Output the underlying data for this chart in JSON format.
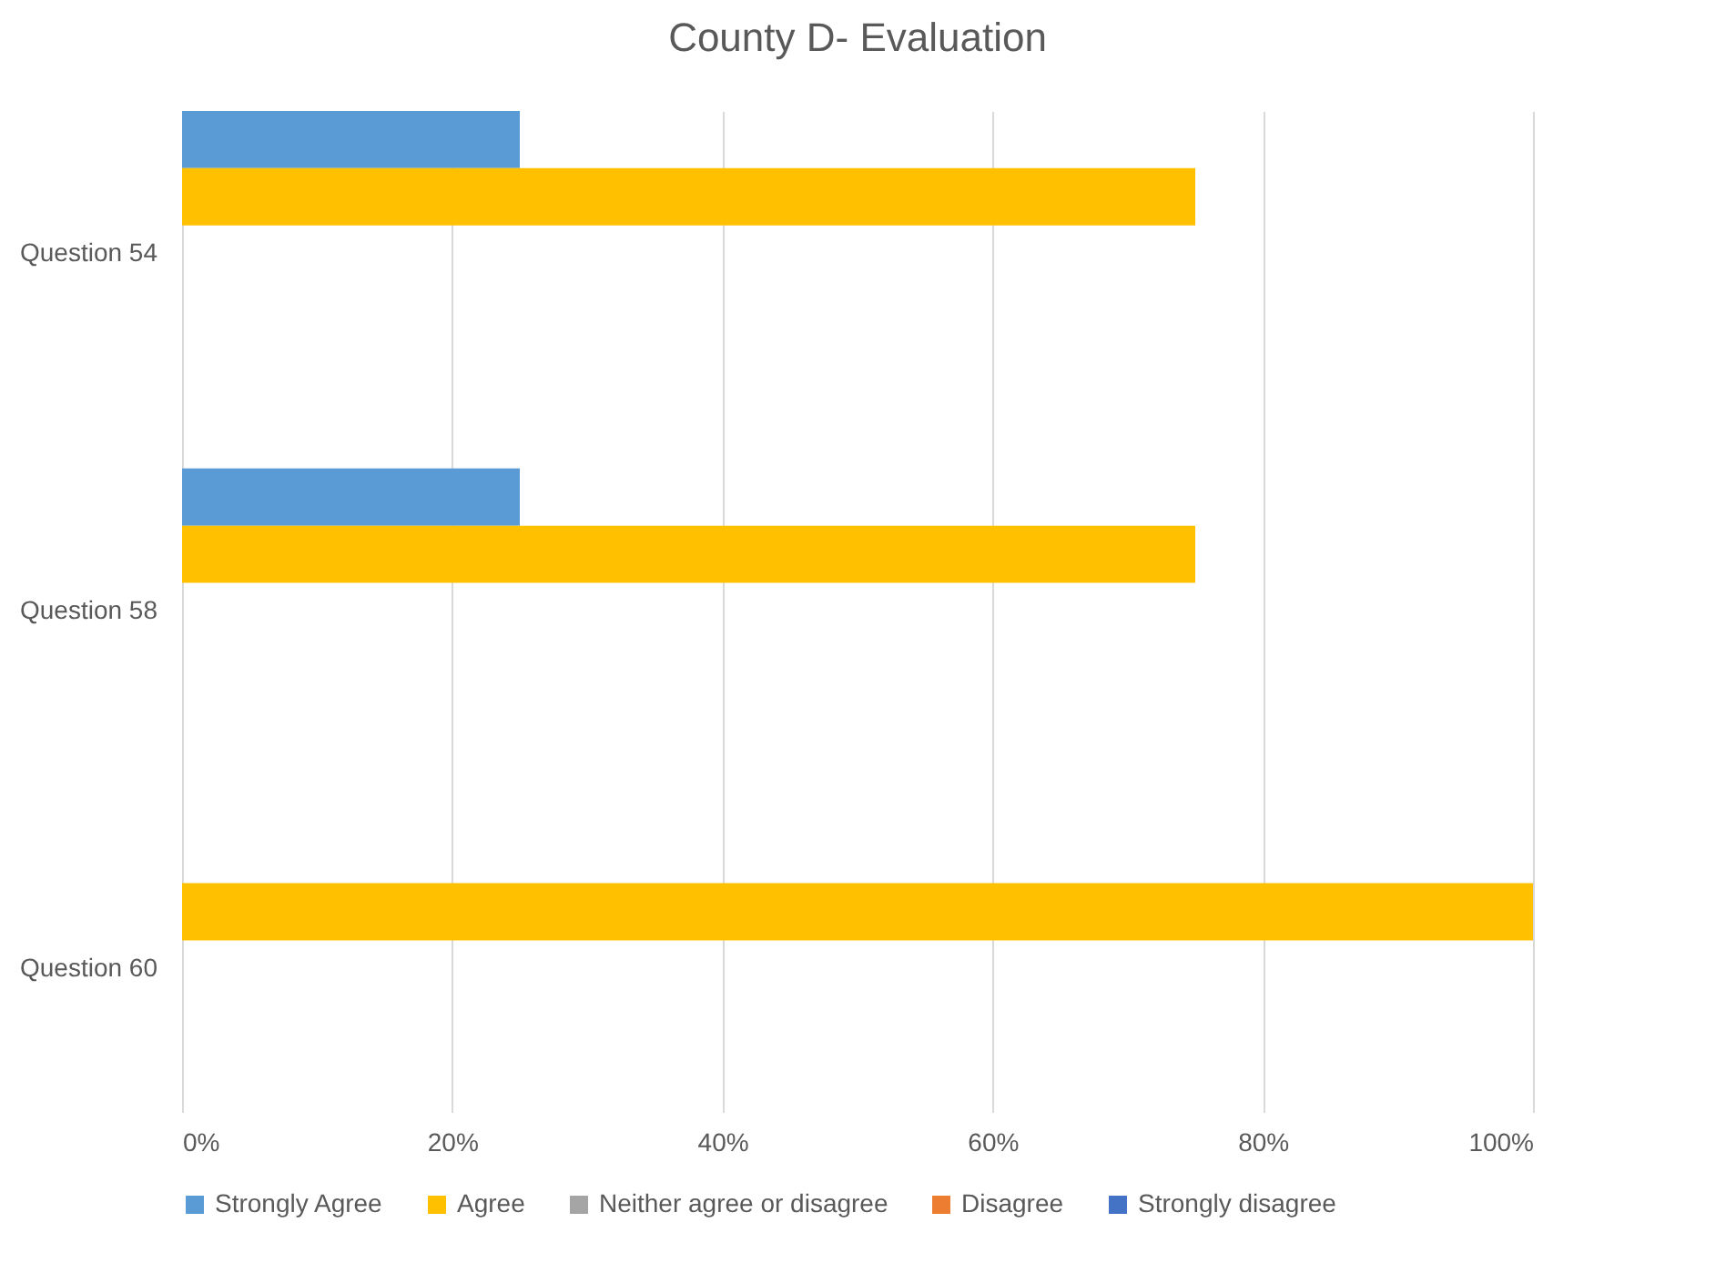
{
  "chart_data": {
    "type": "bar",
    "orientation": "horizontal",
    "title": "County D- Evaluation",
    "categories": [
      "Question 54",
      "Question 58",
      "Question 60"
    ],
    "series": [
      {
        "name": "Strongly Agree",
        "color": "#5b9bd5",
        "values": [
          25,
          25,
          0
        ]
      },
      {
        "name": "Agree",
        "color": "#ffc000",
        "values": [
          75,
          75,
          100
        ]
      },
      {
        "name": "Neither agree or disagree",
        "color": "#a5a5a5",
        "values": [
          0,
          0,
          0
        ]
      },
      {
        "name": "Disagree",
        "color": "#ed7d31",
        "values": [
          0,
          0,
          0
        ]
      },
      {
        "name": "Strongly disagree",
        "color": "#4472c4",
        "values": [
          0,
          0,
          0
        ]
      }
    ],
    "xlim": [
      0,
      100
    ],
    "xticks": [
      {
        "value": 0,
        "label": "0%"
      },
      {
        "value": 20,
        "label": "20%"
      },
      {
        "value": 40,
        "label": "40%"
      },
      {
        "value": 60,
        "label": "60%"
      },
      {
        "value": 80,
        "label": "80%"
      },
      {
        "value": 100,
        "label": "100%"
      }
    ],
    "grid": "x",
    "legend": "bottom"
  }
}
